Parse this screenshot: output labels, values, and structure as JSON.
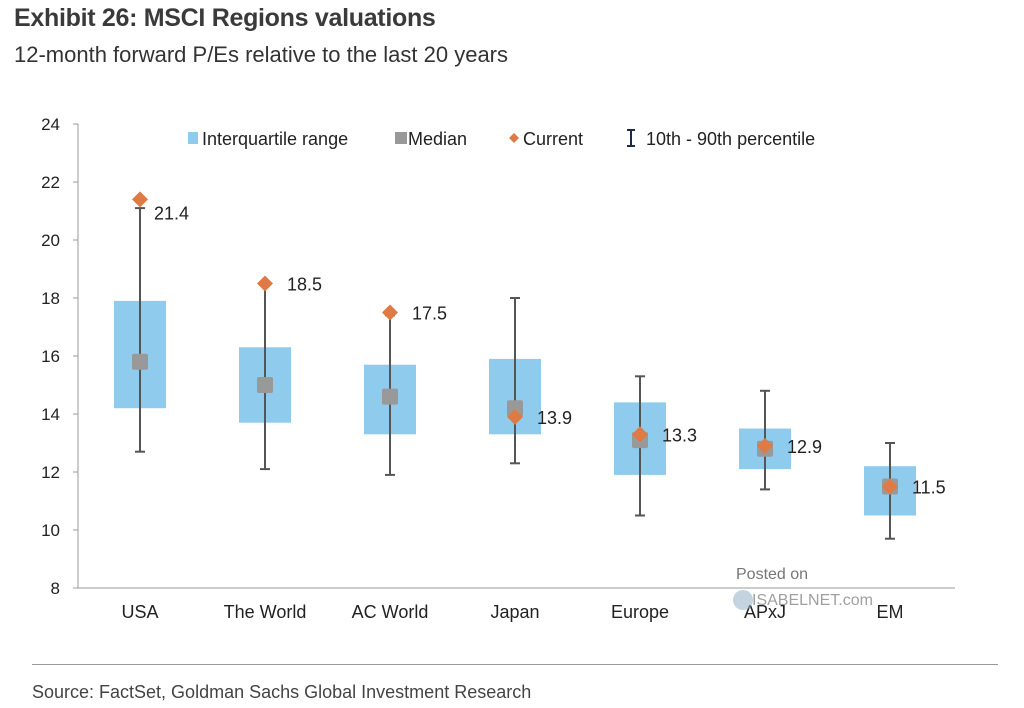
{
  "title": "Exhibit 26: MSCI Regions valuations",
  "subtitle": "12-month forward P/Es relative to the last 20 years",
  "source": "Source: FactSet, Goldman Sachs Global Investment Research",
  "watermark": {
    "line1": "Posted on",
    "line2": "ISABELNET.com"
  },
  "colors": {
    "iqr": "#8ecbed",
    "median": "#999999",
    "current": "#e07a45",
    "whisker": "#555555"
  },
  "chart_data": {
    "type": "box",
    "title": "Exhibit 26: MSCI Regions valuations",
    "subtitle": "12-month forward P/Es relative to the last 20 years",
    "ylim": [
      8,
      24
    ],
    "yticks": [
      8,
      10,
      12,
      14,
      16,
      18,
      20,
      22,
      24
    ],
    "grid": false,
    "legend_position": "top",
    "legend": [
      "Interquartile range",
      "Median",
      "Current",
      "10th - 90th percentile"
    ],
    "categories": [
      "USA",
      "The World",
      "AC World",
      "Japan",
      "Europe",
      "APxJ",
      "EM"
    ],
    "p10": [
      12.7,
      12.1,
      11.9,
      12.3,
      10.5,
      11.4,
      9.7
    ],
    "q1": [
      14.2,
      13.7,
      13.3,
      13.3,
      11.9,
      12.1,
      10.5
    ],
    "median": [
      15.8,
      15.0,
      14.6,
      14.2,
      13.1,
      12.8,
      11.5
    ],
    "q3": [
      17.9,
      16.3,
      15.7,
      15.9,
      14.4,
      13.5,
      12.2
    ],
    "p90": [
      21.1,
      18.5,
      17.4,
      18.0,
      15.3,
      14.8,
      13.0
    ],
    "current": [
      21.4,
      18.5,
      17.5,
      13.9,
      13.3,
      12.9,
      11.5
    ],
    "current_labels": [
      "21.4",
      "18.5",
      "17.5",
      "13.9",
      "13.3",
      "12.9",
      "11.5"
    ]
  }
}
